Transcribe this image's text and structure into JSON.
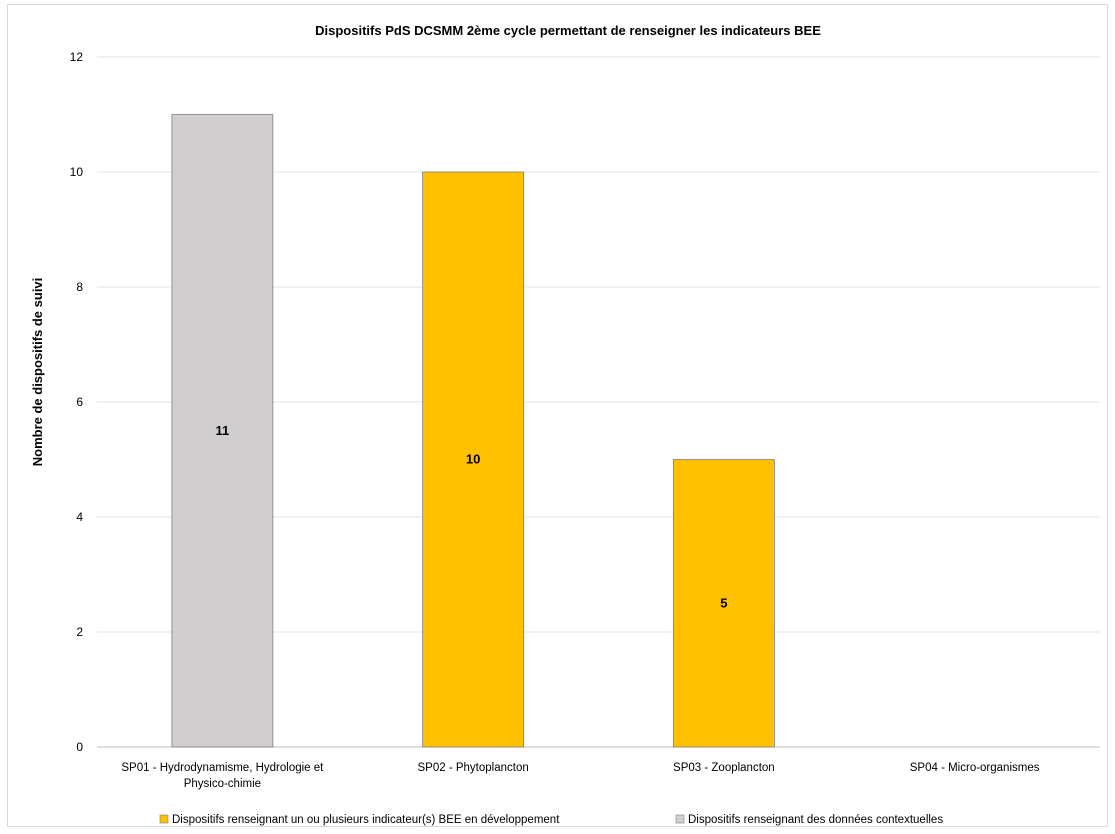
{
  "chart_data": {
    "type": "bar",
    "title": "Dispositifs  PdS DCSMM 2ème cycle permettant de renseigner les indicateurs BEE",
    "ylabel": "Nombre de dispositifs de suivi",
    "xlabel": "",
    "ylim": [
      0,
      12
    ],
    "yticks": [
      0,
      2,
      4,
      6,
      8,
      10,
      12
    ],
    "grid": true,
    "legend_position": "bottom",
    "categories": [
      [
        "SP01 - Hydrodynamisme, Hydrologie et",
        "Physico-chimie"
      ],
      [
        "SP02 - Phytoplancton"
      ],
      [
        "SP03 - Zooplancton"
      ],
      [
        "SP04  - Micro-organismes"
      ]
    ],
    "series": [
      {
        "name": "Dispositifs renseignant un ou plusieurs indicateur(s)  BEE en développement",
        "color": "#ffc000",
        "values": [
          0,
          10,
          5,
          0
        ]
      },
      {
        "name": "Dispositifs renseignant des données contextuelles",
        "color": "#d0cece",
        "values": [
          11,
          0,
          0,
          0
        ]
      }
    ]
  }
}
